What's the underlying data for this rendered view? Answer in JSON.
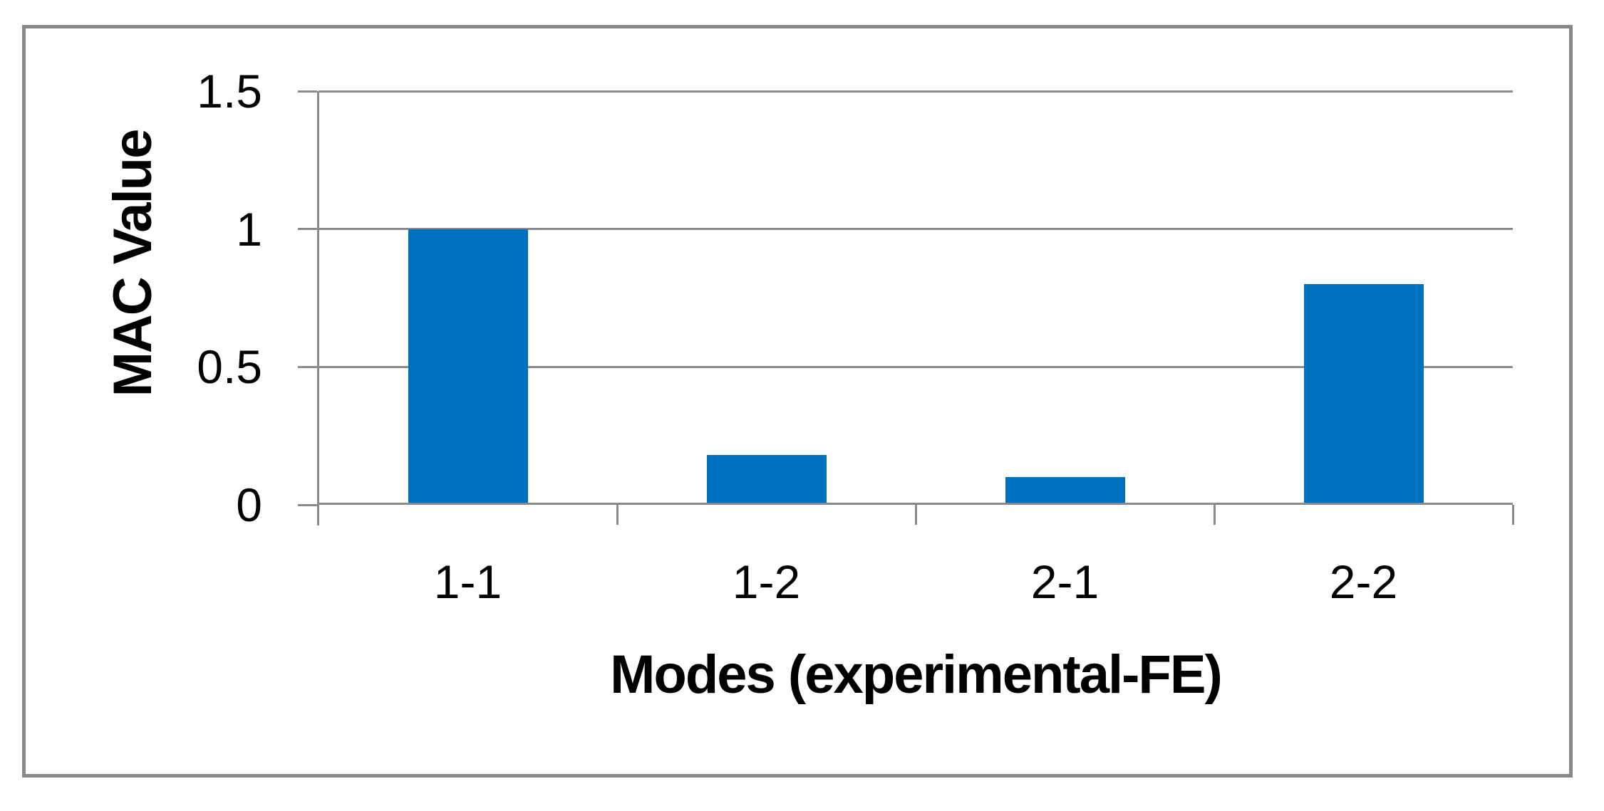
{
  "figure": {
    "background": "#FFFFFF",
    "border_color": "#898989"
  },
  "chart_data": {
    "type": "bar",
    "title": "",
    "categories": [
      "1-1",
      "1-2",
      "2-1",
      "2-2"
    ],
    "values": [
      1.0,
      0.18,
      0.1,
      0.8
    ],
    "xlabel": "Modes (experimental-FE)",
    "ylabel": "MAC Value",
    "ylim": [
      0,
      1.5
    ],
    "yticks": [
      0,
      0.5,
      1,
      1.5
    ],
    "ytick_labels": [
      "0",
      "0.5",
      "1",
      "1.5"
    ],
    "grid": "horizontal-major-on",
    "legend_position": "none",
    "bar_gap_ratio": 1.5,
    "colors": {
      "bar": "#0070C0",
      "gridline": "#8A8A8A",
      "axis": "#8A8A8A",
      "text": "#000000"
    }
  }
}
